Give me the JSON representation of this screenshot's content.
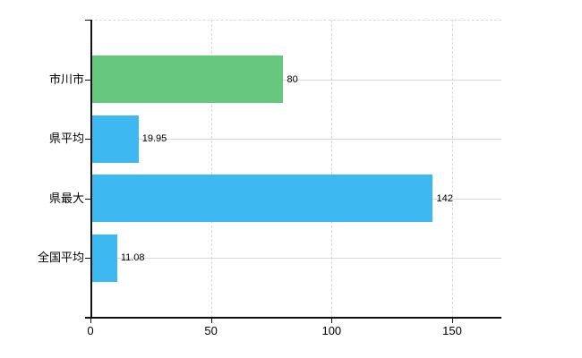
{
  "chart_data": {
    "type": "bar",
    "orientation": "horizontal",
    "title": "",
    "xlabel": "",
    "ylabel": "",
    "categories": [
      "市川市",
      "県平均",
      "県最大",
      "全国平均"
    ],
    "values": [
      80,
      19.95,
      142,
      11.08
    ],
    "value_labels": [
      "80",
      "19.95",
      "142",
      "11.08"
    ],
    "bar_colors": [
      "#66C77E",
      "#3DB8F0",
      "#3DB8F0",
      "#3DB8F0"
    ],
    "x_ticks": [
      0,
      50,
      100,
      150
    ],
    "x_tick_labels": [
      "0",
      "50",
      "100",
      "150"
    ],
    "xlim": [
      0,
      170.4
    ],
    "grid": true,
    "legend": "none"
  },
  "colors": {
    "bar_green": "#66C77E",
    "bar_blue": "#3DB8F0",
    "gridline": "#D8D8D8",
    "axis": "#111111",
    "text": "#000000",
    "background": "#FFFFFF"
  }
}
